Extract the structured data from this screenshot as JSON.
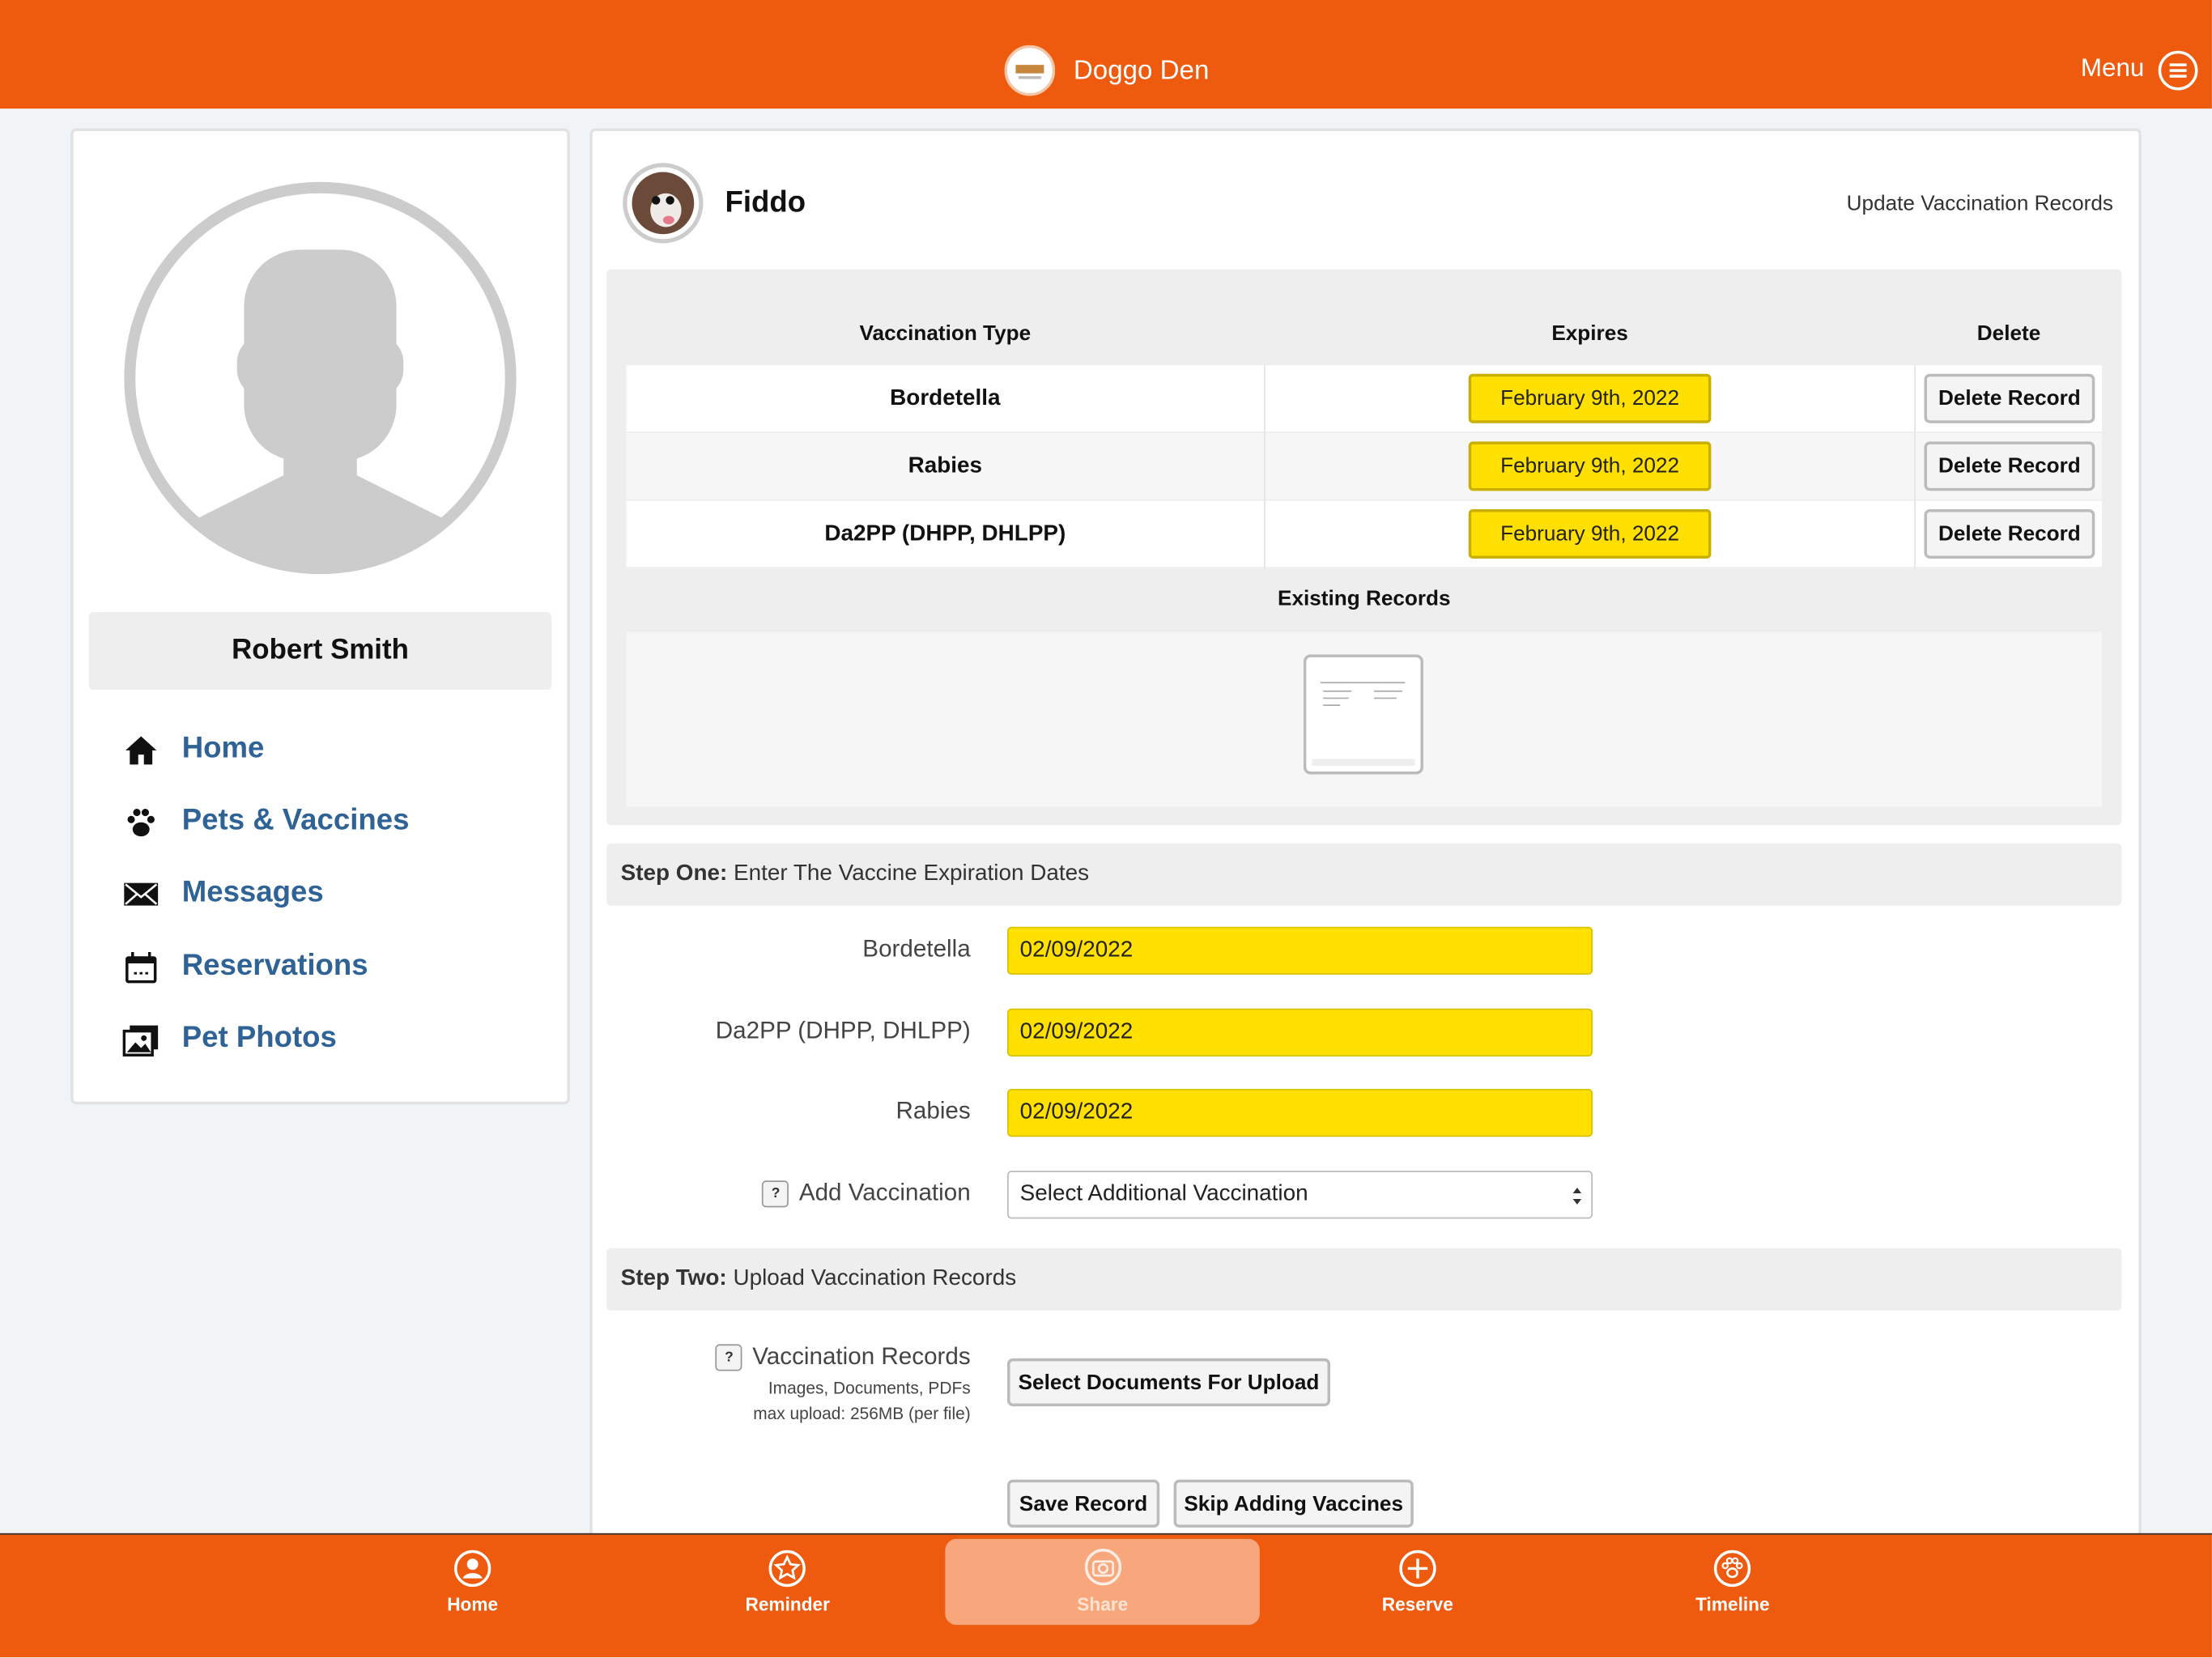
{
  "header": {
    "title": "Doggo Den",
    "menu": "Menu"
  },
  "profile": {
    "name": "Robert Smith"
  },
  "nav": [
    "Home",
    "Pets & Vaccines",
    "Messages",
    "Reservations",
    "Pet Photos"
  ],
  "pet": {
    "name": "Fiddo",
    "action": "Update Vaccination Records"
  },
  "table": {
    "headers": [
      "Vaccination Type",
      "Expires",
      "Delete"
    ],
    "rows": [
      [
        "Bordetella",
        "February 9th, 2022",
        "Delete Record"
      ],
      [
        "Rabies",
        "February 9th, 2022",
        "Delete Record"
      ],
      [
        "Da2PP (DHPP, DHLPP)",
        "February 9th, 2022",
        "Delete Record"
      ]
    ]
  },
  "existing_records": "Existing Records",
  "step_one": {
    "label": "Step One:",
    "text": "Enter The Vaccine Expiration Dates"
  },
  "fields": [
    {
      "label": "Bordetella",
      "value": "02/09/2022"
    },
    {
      "label": "Da2PP (DHPP, DHLPP)",
      "value": "02/09/2022"
    },
    {
      "label": "Rabies",
      "value": "02/09/2022"
    }
  ],
  "help": "?",
  "add_vaccination": {
    "label": "Add Vaccination",
    "placeholder": "Select Additional Vaccination"
  },
  "step_two": {
    "label": "Step Two:",
    "text": "Upload Vaccination Records"
  },
  "upload": {
    "label": "Vaccination Records",
    "hint1": "Images, Documents, PDFs",
    "hint2": "max upload: 256MB (per file)",
    "button": "Select Documents For Upload"
  },
  "buttons": [
    "Save Record",
    "Skip Adding Vaccines"
  ],
  "bottom_nav": [
    "Home",
    "Reminder",
    "Share",
    "Reserve",
    "Timeline"
  ]
}
